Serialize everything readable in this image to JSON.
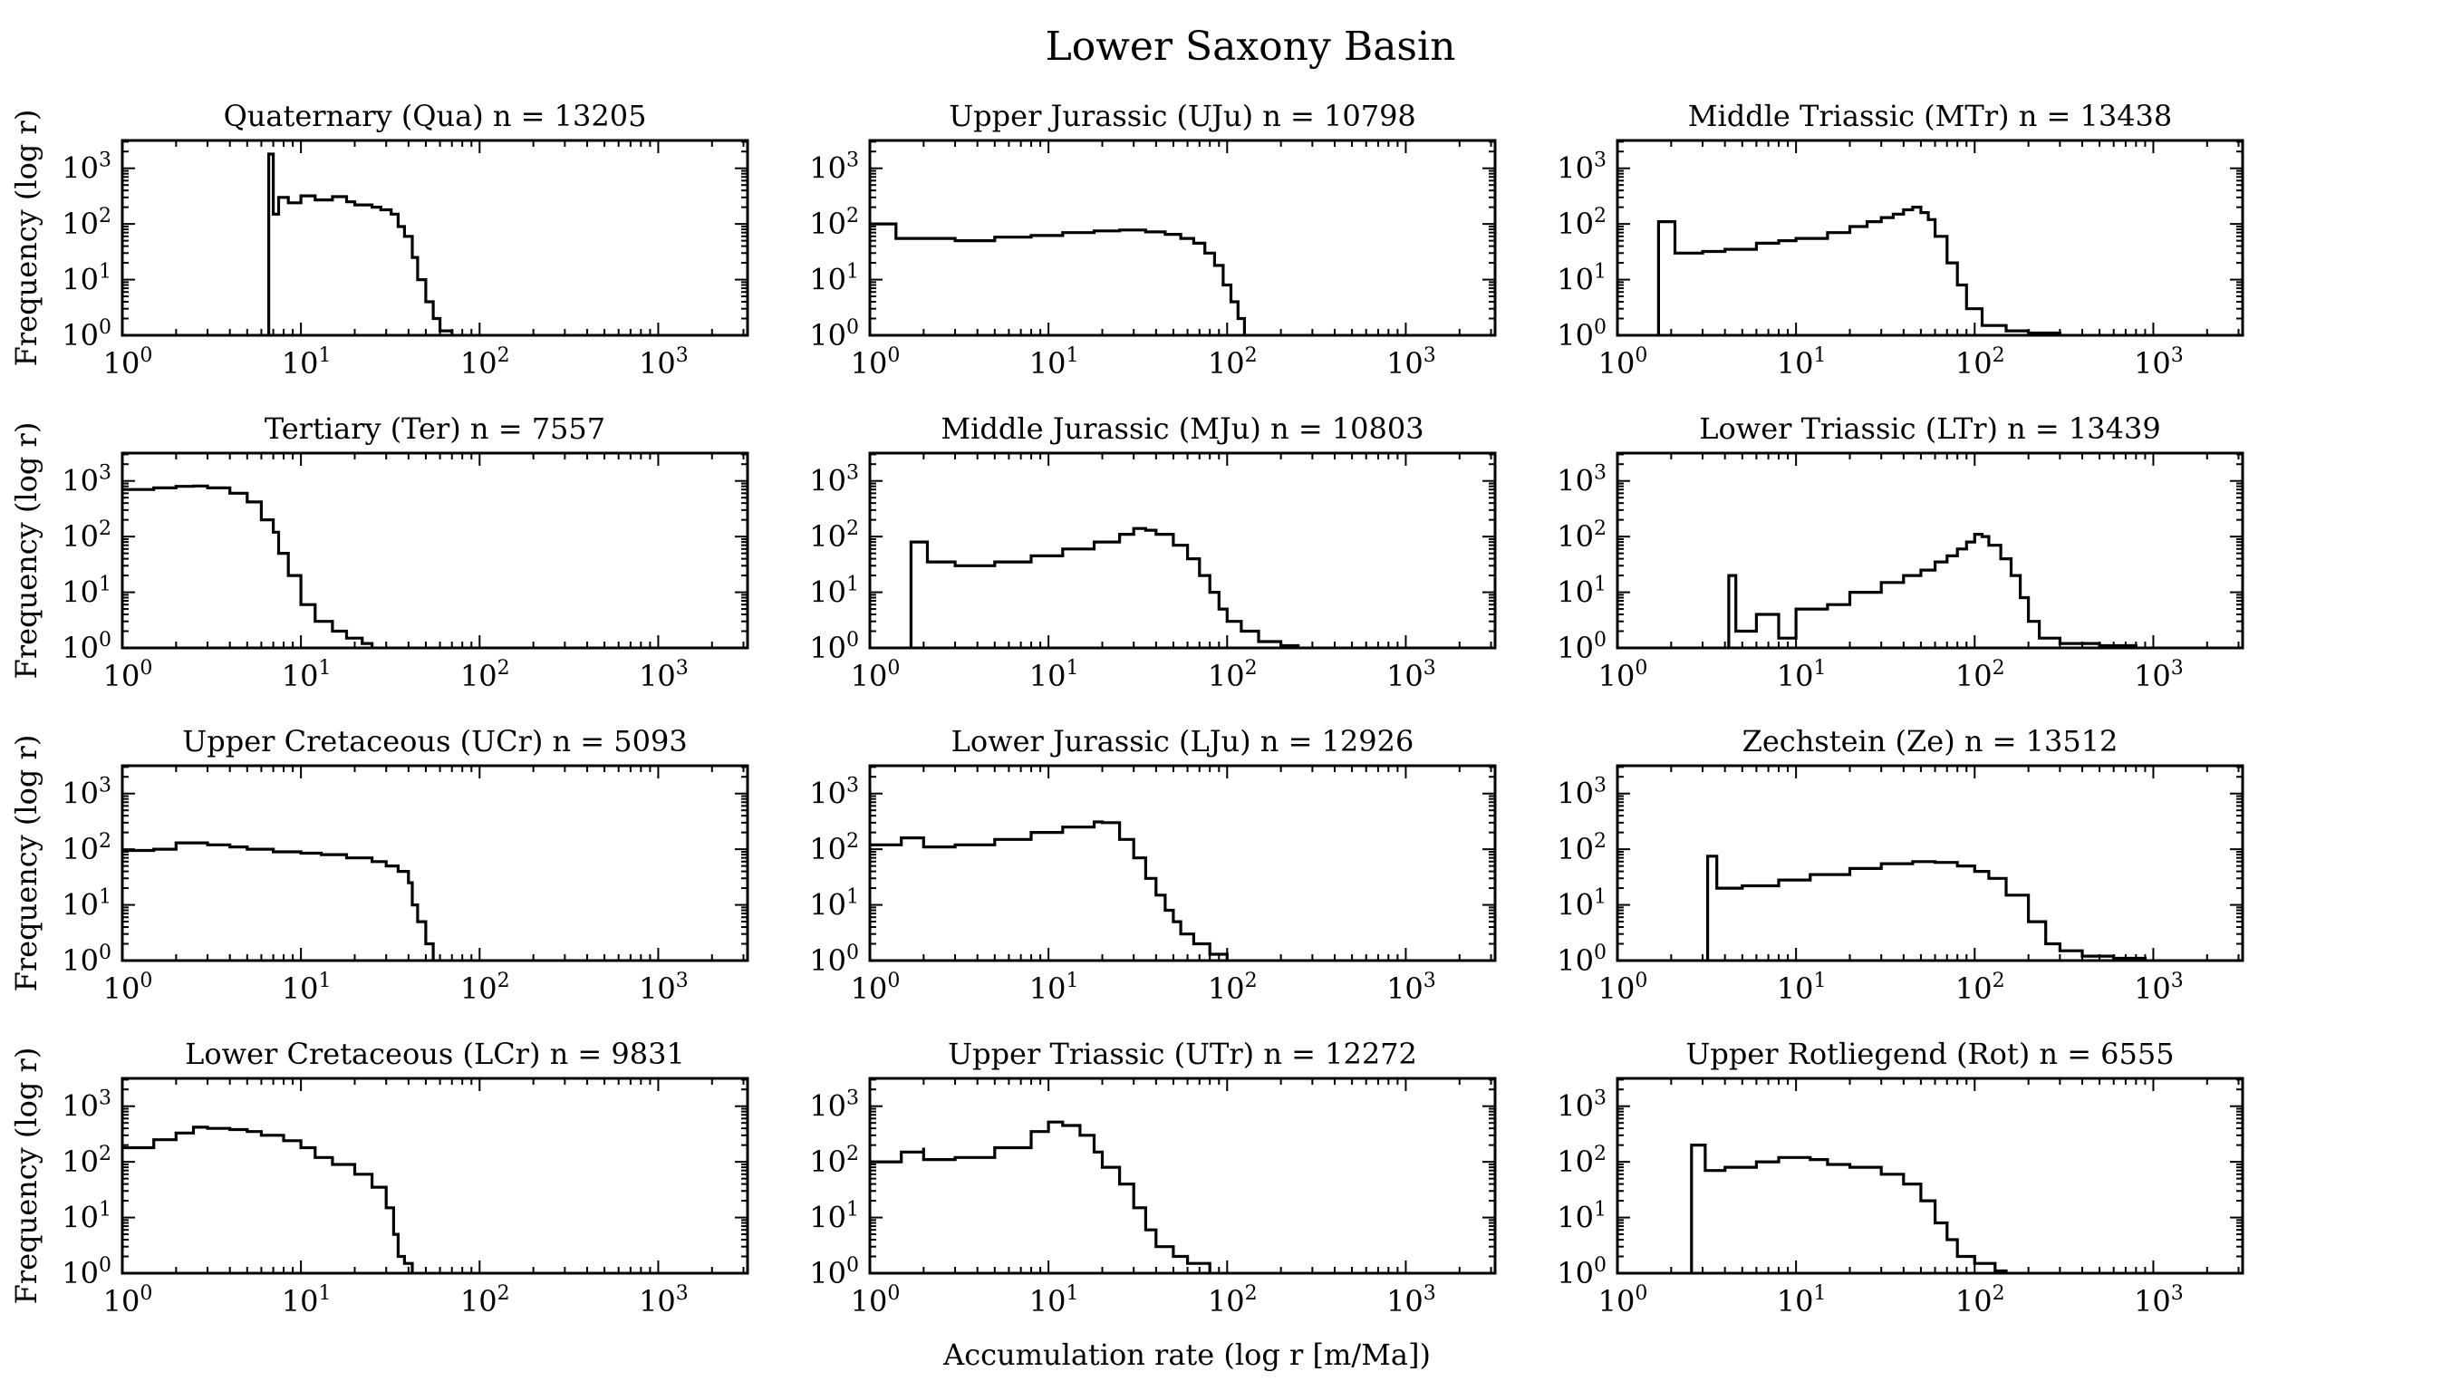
{
  "figure": {
    "title": "Lower Saxony Basin",
    "xlabel": "Accumulation rate (log r [m/Ma])",
    "ylabel": "Frequency (log r)",
    "x_ticks": [
      {
        "value": 1,
        "base": "10",
        "exp": "0"
      },
      {
        "value": 10,
        "base": "10",
        "exp": "1"
      },
      {
        "value": 100,
        "base": "10",
        "exp": "2"
      },
      {
        "value": 1000,
        "base": "10",
        "exp": "3"
      }
    ],
    "y_ticks": [
      {
        "value": 1,
        "base": "10",
        "exp": "0"
      },
      {
        "value": 10,
        "base": "10",
        "exp": "1"
      },
      {
        "value": 100,
        "base": "10",
        "exp": "2"
      },
      {
        "value": 1000,
        "base": "10",
        "exp": "3"
      }
    ],
    "line_color": "#000000"
  },
  "chart_data": [
    {
      "type": "histogram",
      "title": "Quaternary (Qua) n = 13205",
      "xscale": "log",
      "yscale": "log",
      "xlim": [
        1,
        3162
      ],
      "ylim": [
        1,
        3162
      ],
      "points": [
        [
          6.6,
          1
        ],
        [
          6.6,
          1800
        ],
        [
          7.0,
          1800
        ],
        [
          7.0,
          150
        ],
        [
          7.5,
          300
        ],
        [
          8.5,
          240
        ],
        [
          10,
          320
        ],
        [
          12,
          270
        ],
        [
          15,
          310
        ],
        [
          18,
          250
        ],
        [
          20,
          220
        ],
        [
          25,
          200
        ],
        [
          28,
          180
        ],
        [
          32,
          150
        ],
        [
          35,
          90
        ],
        [
          38,
          60
        ],
        [
          42,
          25
        ],
        [
          45,
          10
        ],
        [
          50,
          4
        ],
        [
          55,
          2
        ],
        [
          60,
          1.2
        ],
        [
          70,
          1
        ]
      ]
    },
    {
      "type": "histogram",
      "title": "Upper Jurassic (UJu) n = 10798",
      "xscale": "log",
      "yscale": "log",
      "xlim": [
        1,
        3162
      ],
      "ylim": [
        1,
        3162
      ],
      "points": [
        [
          1.0,
          100
        ],
        [
          1.4,
          100
        ],
        [
          1.4,
          55
        ],
        [
          2,
          55
        ],
        [
          3,
          50
        ],
        [
          5,
          58
        ],
        [
          8,
          62
        ],
        [
          12,
          70
        ],
        [
          18,
          75
        ],
        [
          25,
          78
        ],
        [
          35,
          72
        ],
        [
          45,
          65
        ],
        [
          55,
          55
        ],
        [
          65,
          45
        ],
        [
          75,
          30
        ],
        [
          85,
          18
        ],
        [
          95,
          8
        ],
        [
          105,
          4
        ],
        [
          115,
          2
        ],
        [
          125,
          1
        ]
      ]
    },
    {
      "type": "histogram",
      "title": "Middle Triassic (MTr) n = 13438",
      "xscale": "log",
      "yscale": "log",
      "xlim": [
        1,
        3162
      ],
      "ylim": [
        1,
        3162
      ],
      "points": [
        [
          1.7,
          1
        ],
        [
          1.7,
          110
        ],
        [
          2.1,
          110
        ],
        [
          2.1,
          30
        ],
        [
          3,
          32
        ],
        [
          4,
          35
        ],
        [
          6,
          45
        ],
        [
          8,
          50
        ],
        [
          10,
          55
        ],
        [
          15,
          70
        ],
        [
          20,
          90
        ],
        [
          25,
          110
        ],
        [
          30,
          130
        ],
        [
          35,
          150
        ],
        [
          40,
          180
        ],
        [
          45,
          200
        ],
        [
          50,
          160
        ],
        [
          55,
          120
        ],
        [
          60,
          60
        ],
        [
          70,
          20
        ],
        [
          80,
          8
        ],
        [
          90,
          3
        ],
        [
          110,
          1.5
        ],
        [
          150,
          1.2
        ],
        [
          200,
          1.1
        ],
        [
          300,
          1
        ]
      ]
    },
    {
      "type": "histogram",
      "title": "Tertiary (Ter) n = 7557",
      "xscale": "log",
      "yscale": "log",
      "xlim": [
        1,
        3162
      ],
      "ylim": [
        1,
        3162
      ],
      "points": [
        [
          1.0,
          700
        ],
        [
          1.5,
          750
        ],
        [
          2,
          800
        ],
        [
          2.5,
          810
        ],
        [
          3,
          750
        ],
        [
          4,
          600
        ],
        [
          5,
          420
        ],
        [
          6,
          200
        ],
        [
          7,
          120
        ],
        [
          7.5,
          50
        ],
        [
          8.5,
          20
        ],
        [
          10,
          6
        ],
        [
          12,
          3
        ],
        [
          15,
          2
        ],
        [
          18,
          1.5
        ],
        [
          22,
          1.2
        ],
        [
          25,
          1
        ]
      ]
    },
    {
      "type": "histogram",
      "title": "Middle Jurassic (MJu) n = 10803",
      "xscale": "log",
      "yscale": "log",
      "xlim": [
        1,
        3162
      ],
      "ylim": [
        1,
        3162
      ],
      "points": [
        [
          1.7,
          1
        ],
        [
          1.7,
          80
        ],
        [
          2.1,
          80
        ],
        [
          2.1,
          35
        ],
        [
          3,
          30
        ],
        [
          5,
          35
        ],
        [
          8,
          45
        ],
        [
          12,
          60
        ],
        [
          18,
          80
        ],
        [
          25,
          110
        ],
        [
          30,
          140
        ],
        [
          35,
          130
        ],
        [
          40,
          110
        ],
        [
          50,
          70
        ],
        [
          60,
          40
        ],
        [
          70,
          20
        ],
        [
          80,
          10
        ],
        [
          90,
          5
        ],
        [
          100,
          3
        ],
        [
          120,
          2
        ],
        [
          150,
          1.3
        ],
        [
          200,
          1.1
        ],
        [
          250,
          1
        ]
      ]
    },
    {
      "type": "histogram",
      "title": "Lower Triassic (LTr) n = 13439",
      "xscale": "log",
      "yscale": "log",
      "xlim": [
        1,
        3162
      ],
      "ylim": [
        1,
        3162
      ],
      "points": [
        [
          4.2,
          1
        ],
        [
          4.2,
          20
        ],
        [
          4.6,
          20
        ],
        [
          4.6,
          2
        ],
        [
          6,
          2
        ],
        [
          6,
          4
        ],
        [
          8,
          1.5
        ],
        [
          10,
          5
        ],
        [
          15,
          6
        ],
        [
          20,
          10
        ],
        [
          30,
          15
        ],
        [
          40,
          20
        ],
        [
          50,
          25
        ],
        [
          60,
          35
        ],
        [
          70,
          45
        ],
        [
          80,
          60
        ],
        [
          90,
          80
        ],
        [
          100,
          110
        ],
        [
          110,
          100
        ],
        [
          120,
          70
        ],
        [
          140,
          40
        ],
        [
          160,
          20
        ],
        [
          180,
          8
        ],
        [
          200,
          3
        ],
        [
          230,
          1.5
        ],
        [
          300,
          1.2
        ],
        [
          500,
          1.1
        ],
        [
          800,
          1
        ]
      ]
    },
    {
      "type": "histogram",
      "title": "Upper Cretaceous (UCr) n = 5093",
      "xscale": "log",
      "yscale": "log",
      "xlim": [
        1,
        3162
      ],
      "ylim": [
        1,
        3162
      ],
      "points": [
        [
          1.0,
          95
        ],
        [
          1.5,
          100
        ],
        [
          2,
          130
        ],
        [
          3,
          120
        ],
        [
          4,
          110
        ],
        [
          5,
          100
        ],
        [
          7,
          90
        ],
        [
          10,
          85
        ],
        [
          13,
          80
        ],
        [
          18,
          70
        ],
        [
          25,
          60
        ],
        [
          30,
          50
        ],
        [
          35,
          40
        ],
        [
          40,
          25
        ],
        [
          42,
          10
        ],
        [
          45,
          5
        ],
        [
          50,
          2
        ],
        [
          55,
          1
        ]
      ]
    },
    {
      "type": "histogram",
      "title": "Lower Jurassic (LJu) n = 12926",
      "xscale": "log",
      "yscale": "log",
      "xlim": [
        1,
        3162
      ],
      "ylim": [
        1,
        3162
      ],
      "points": [
        [
          1.0,
          120
        ],
        [
          1.5,
          160
        ],
        [
          2,
          160
        ],
        [
          2,
          110
        ],
        [
          3,
          120
        ],
        [
          5,
          150
        ],
        [
          8,
          200
        ],
        [
          12,
          250
        ],
        [
          18,
          310
        ],
        [
          20,
          300
        ],
        [
          25,
          150
        ],
        [
          30,
          70
        ],
        [
          35,
          30
        ],
        [
          40,
          15
        ],
        [
          45,
          8
        ],
        [
          50,
          5
        ],
        [
          55,
          3
        ],
        [
          65,
          2
        ],
        [
          80,
          1.3
        ],
        [
          100,
          1
        ]
      ]
    },
    {
      "type": "histogram",
      "title": "Zechstein (Ze) n = 13512",
      "xscale": "log",
      "yscale": "log",
      "xlim": [
        1,
        3162
      ],
      "ylim": [
        1,
        3162
      ],
      "points": [
        [
          3.2,
          1
        ],
        [
          3.2,
          75
        ],
        [
          3.6,
          75
        ],
        [
          3.6,
          20
        ],
        [
          5,
          22
        ],
        [
          8,
          28
        ],
        [
          12,
          35
        ],
        [
          20,
          45
        ],
        [
          30,
          55
        ],
        [
          45,
          60
        ],
        [
          60,
          58
        ],
        [
          80,
          50
        ],
        [
          100,
          40
        ],
        [
          120,
          30
        ],
        [
          150,
          15
        ],
        [
          200,
          5
        ],
        [
          250,
          2
        ],
        [
          300,
          1.5
        ],
        [
          400,
          1.2
        ],
        [
          600,
          1.1
        ],
        [
          900,
          1
        ]
      ]
    },
    {
      "type": "histogram",
      "title": "Lower Cretaceous (LCr) n = 9831",
      "xscale": "log",
      "yscale": "log",
      "xlim": [
        1,
        3162
      ],
      "ylim": [
        1,
        3162
      ],
      "points": [
        [
          1.0,
          180
        ],
        [
          1.5,
          250
        ],
        [
          2,
          330
        ],
        [
          2.5,
          420
        ],
        [
          3,
          400
        ],
        [
          4,
          380
        ],
        [
          5,
          350
        ],
        [
          6,
          300
        ],
        [
          8,
          240
        ],
        [
          10,
          180
        ],
        [
          12,
          120
        ],
        [
          15,
          90
        ],
        [
          20,
          60
        ],
        [
          25,
          35
        ],
        [
          30,
          15
        ],
        [
          33,
          5
        ],
        [
          35,
          2
        ],
        [
          38,
          1.5
        ],
        [
          42,
          1
        ]
      ]
    },
    {
      "type": "histogram",
      "title": "Upper Triassic (UTr) n = 12272",
      "xscale": "log",
      "yscale": "log",
      "xlim": [
        1,
        3162
      ],
      "ylim": [
        1,
        3162
      ],
      "points": [
        [
          1.0,
          100
        ],
        [
          1.5,
          150
        ],
        [
          2,
          180
        ],
        [
          2,
          110
        ],
        [
          3,
          120
        ],
        [
          5,
          180
        ],
        [
          8,
          350
        ],
        [
          10,
          520
        ],
        [
          12,
          450
        ],
        [
          15,
          300
        ],
        [
          18,
          150
        ],
        [
          20,
          80
        ],
        [
          25,
          40
        ],
        [
          30,
          15
        ],
        [
          35,
          6
        ],
        [
          40,
          3
        ],
        [
          50,
          2
        ],
        [
          60,
          1.5
        ],
        [
          80,
          1
        ]
      ]
    },
    {
      "type": "histogram",
      "title": "Upper Rotliegend (Rot) n = 6555",
      "xscale": "log",
      "yscale": "log",
      "xlim": [
        1,
        3162
      ],
      "ylim": [
        1,
        3162
      ],
      "points": [
        [
          2.6,
          1
        ],
        [
          2.6,
          200
        ],
        [
          3.1,
          200
        ],
        [
          3.1,
          70
        ],
        [
          4,
          80
        ],
        [
          6,
          100
        ],
        [
          8,
          120
        ],
        [
          12,
          110
        ],
        [
          15,
          90
        ],
        [
          20,
          80
        ],
        [
          30,
          60
        ],
        [
          40,
          40
        ],
        [
          50,
          20
        ],
        [
          60,
          8
        ],
        [
          70,
          4
        ],
        [
          80,
          2
        ],
        [
          100,
          1.5
        ],
        [
          130,
          1.1
        ],
        [
          150,
          1
        ]
      ]
    }
  ]
}
